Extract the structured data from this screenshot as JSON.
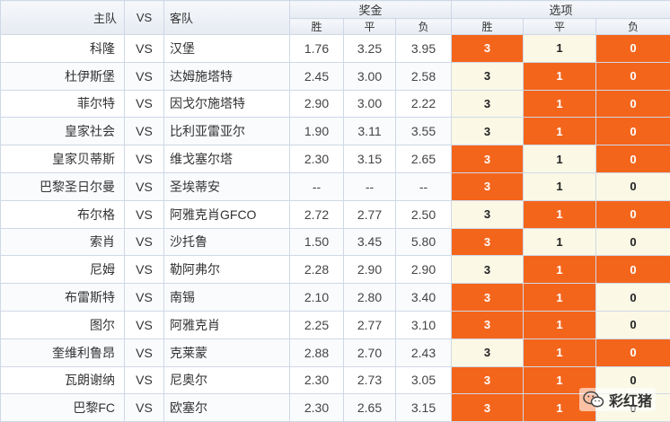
{
  "header": {
    "home_label": "主队",
    "vs_label": "VS",
    "away_label": "客队",
    "bonus_label": "奖金",
    "options_label": "选项",
    "sub_win": "胜",
    "sub_draw": "平",
    "sub_lose": "负"
  },
  "rows": [
    {
      "home": "科隆",
      "vs": "VS",
      "away": "汉堡",
      "odds": [
        "1.76",
        "3.25",
        "3.95"
      ],
      "opts": [
        "3",
        "1",
        "0"
      ],
      "hl": [
        true,
        false,
        true
      ]
    },
    {
      "home": "杜伊斯堡",
      "vs": "VS",
      "away": "达姆施塔特",
      "odds": [
        "2.45",
        "3.00",
        "2.58"
      ],
      "opts": [
        "3",
        "1",
        "0"
      ],
      "hl": [
        false,
        true,
        true
      ]
    },
    {
      "home": "菲尔特",
      "vs": "VS",
      "away": "因戈尔施塔特",
      "odds": [
        "2.90",
        "3.00",
        "2.22"
      ],
      "opts": [
        "3",
        "1",
        "0"
      ],
      "hl": [
        false,
        true,
        true
      ]
    },
    {
      "home": "皇家社会",
      "vs": "VS",
      "away": "比利亚雷亚尔",
      "odds": [
        "1.90",
        "3.11",
        "3.55"
      ],
      "opts": [
        "3",
        "1",
        "0"
      ],
      "hl": [
        false,
        true,
        true
      ]
    },
    {
      "home": "皇家贝蒂斯",
      "vs": "VS",
      "away": "维戈塞尔塔",
      "odds": [
        "2.30",
        "3.15",
        "2.65"
      ],
      "opts": [
        "3",
        "1",
        "0"
      ],
      "hl": [
        true,
        false,
        true
      ]
    },
    {
      "home": "巴黎圣日尔曼",
      "vs": "VS",
      "away": "圣埃蒂安",
      "odds": [
        "--",
        "--",
        "--"
      ],
      "opts": [
        "3",
        "1",
        "0"
      ],
      "hl": [
        true,
        false,
        false
      ]
    },
    {
      "home": "布尔格",
      "vs": "VS",
      "away": "阿雅克肖GFCO",
      "odds": [
        "2.72",
        "2.77",
        "2.50"
      ],
      "opts": [
        "3",
        "1",
        "0"
      ],
      "hl": [
        false,
        true,
        true
      ]
    },
    {
      "home": "索肖",
      "vs": "VS",
      "away": "沙托鲁",
      "odds": [
        "1.50",
        "3.45",
        "5.80"
      ],
      "opts": [
        "3",
        "1",
        "0"
      ],
      "hl": [
        true,
        false,
        false
      ]
    },
    {
      "home": "尼姆",
      "vs": "VS",
      "away": "勒阿弗尔",
      "odds": [
        "2.28",
        "2.90",
        "2.90"
      ],
      "opts": [
        "3",
        "1",
        "0"
      ],
      "hl": [
        false,
        true,
        true
      ]
    },
    {
      "home": "布雷斯特",
      "vs": "VS",
      "away": "南锡",
      "odds": [
        "2.10",
        "2.80",
        "3.40"
      ],
      "opts": [
        "3",
        "1",
        "0"
      ],
      "hl": [
        true,
        true,
        false
      ]
    },
    {
      "home": "图尔",
      "vs": "VS",
      "away": "阿雅克肖",
      "odds": [
        "2.25",
        "2.77",
        "3.10"
      ],
      "opts": [
        "3",
        "1",
        "0"
      ],
      "hl": [
        true,
        true,
        false
      ]
    },
    {
      "home": "奎维利鲁昂",
      "vs": "VS",
      "away": "克莱蒙",
      "odds": [
        "2.88",
        "2.70",
        "2.43"
      ],
      "opts": [
        "3",
        "1",
        "0"
      ],
      "hl": [
        false,
        true,
        true
      ]
    },
    {
      "home": "瓦朗谢纳",
      "vs": "VS",
      "away": "尼奥尔",
      "odds": [
        "2.30",
        "2.73",
        "3.05"
      ],
      "opts": [
        "3",
        "1",
        "0"
      ],
      "hl": [
        true,
        true,
        false
      ]
    },
    {
      "home": "巴黎FC",
      "vs": "VS",
      "away": "欧塞尔",
      "odds": [
        "2.30",
        "2.65",
        "3.15"
      ],
      "opts": [
        "3",
        "1",
        "0"
      ],
      "hl": [
        true,
        true,
        false
      ]
    }
  ],
  "watermark": {
    "text": "彩红猪",
    "icon": "wechat-icon"
  },
  "colors": {
    "highlight": "#f4651c",
    "option_bg": "#fbf8e6",
    "border": "#cfd8e6"
  }
}
